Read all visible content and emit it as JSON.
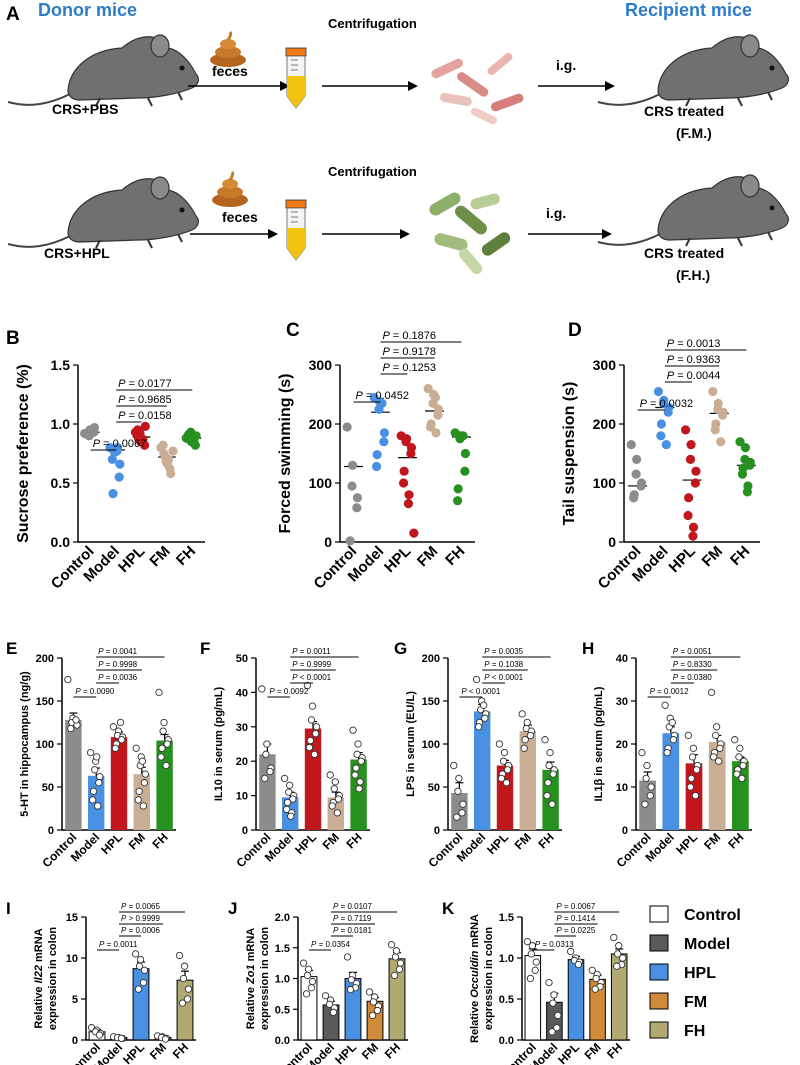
{
  "figure": {
    "colors": {
      "control": "#8c8c8c",
      "model": "#4a90e2",
      "hpl": "#c0161c",
      "fm": "#c9ae95",
      "fh": "#26911f",
      "model_dark": "#5a5a5a",
      "fm_tan": "#d18a3a",
      "fh_olive": "#b0aa72",
      "header_blue": "#2e7bc8"
    }
  },
  "schematic": {
    "panel_label": "A",
    "donor_label": "Donor mice",
    "recipient_label": "Recipient mice",
    "row1": {
      "donor": "CRS+PBS",
      "feces": "feces",
      "step": "Centrifugation",
      "route": "i.g.",
      "recipient": "CRS treated",
      "group": "(F.M.)"
    },
    "row2": {
      "donor": "CRS+HPL",
      "feces": "feces",
      "step": "Centrifugation",
      "route": "i.g.",
      "recipient": "CRS treated",
      "group": "(F.H.)"
    }
  },
  "legend": {
    "items": [
      {
        "label": "Control",
        "color": "#ffffff"
      },
      {
        "label": "Model",
        "color": "#5a5a5a"
      },
      {
        "label": "HPL",
        "color": "#4a90e2"
      },
      {
        "label": "FM",
        "color": "#d18a3a"
      },
      {
        "label": "FH",
        "color": "#b0aa72"
      }
    ]
  },
  "chart_data": [
    {
      "panel": "B",
      "type": "scatter",
      "ylabel": "Sucrose preference (%)",
      "ylim": [
        0,
        1.5
      ],
      "yticks": [
        "0.0",
        "0.5",
        "1.0",
        "1.5"
      ],
      "categories": [
        "Control",
        "Model",
        "HPL",
        "FM",
        "FH"
      ],
      "means": [
        0.93,
        0.78,
        0.89,
        0.72,
        0.88
      ],
      "points": [
        [
          0.92,
          0.95,
          0.9,
          0.97,
          0.93,
          0.91
        ],
        [
          0.8,
          0.78,
          0.76,
          0.66,
          0.55,
          0.41,
          0.7,
          0.8,
          0.77
        ],
        [
          0.93,
          0.85,
          0.92,
          0.98,
          0.82,
          0.88,
          0.95,
          0.87
        ],
        [
          0.8,
          0.68,
          0.72,
          0.58,
          0.62,
          0.75,
          0.82,
          0.7,
          0.66,
          0.77
        ],
        [
          0.88,
          0.85,
          0.93,
          0.9,
          0.82,
          0.87,
          0.91,
          0.86
        ]
      ],
      "pvalues": [
        "P = 0.0067",
        "P = 0.0158",
        "P = 0.9685",
        "P = 0.0177"
      ]
    },
    {
      "panel": "C",
      "type": "scatter",
      "ylabel": "Forced swimming (s)",
      "ylim": [
        0,
        300
      ],
      "yticks": [
        "0",
        "100",
        "200",
        "300"
      ],
      "categories": [
        "Control",
        "Model",
        "HPL",
        "FM",
        "FH"
      ],
      "means": [
        128,
        220,
        143,
        222,
        178
      ],
      "points": [
        [
          195,
          130,
          95,
          75,
          58,
          2
        ],
        [
          245,
          238,
          225,
          185,
          170,
          148,
          128,
          235
        ],
        [
          180,
          175,
          170,
          160,
          150,
          120,
          100,
          80,
          65,
          15
        ],
        [
          260,
          250,
          235,
          225,
          215,
          200,
          195,
          185,
          245
        ],
        [
          185,
          180,
          175,
          150,
          120,
          90,
          70,
          180
        ]
      ],
      "pvalues": [
        "P = 0.0452",
        "P = 0.1253",
        "P = 0.9178",
        "P = 0.1876"
      ]
    },
    {
      "panel": "D",
      "type": "scatter",
      "ylabel": "Tail suspension (s)",
      "ylim": [
        0,
        300
      ],
      "yticks": [
        "0",
        "100",
        "200",
        "300"
      ],
      "categories": [
        "Control",
        "Model",
        "HPL",
        "FM",
        "FH"
      ],
      "means": [
        95,
        228,
        105,
        218,
        130
      ],
      "points": [
        [
          165,
          140,
          115,
          100,
          95,
          80,
          75
        ],
        [
          255,
          240,
          235,
          228,
          220,
          200,
          180,
          165
        ],
        [
          190,
          165,
          140,
          120,
          100,
          75,
          45,
          25,
          10
        ],
        [
          255,
          235,
          225,
          220,
          215,
          200,
          190,
          170
        ],
        [
          170,
          160,
          140,
          135,
          130,
          125,
          115,
          95,
          85
        ]
      ],
      "pvalues": [
        "P = 0.0032",
        "P = 0.0044",
        "P = 0.9363",
        "P = 0.0013"
      ]
    },
    {
      "panel": "E",
      "type": "bar",
      "ylabel": "5-HT in hippocampus (ng/g)",
      "ylim": [
        0,
        200
      ],
      "yticks": [
        "0",
        "50",
        "100",
        "150",
        "200"
      ],
      "categories": [
        "Control",
        "Model",
        "HPL",
        "FM",
        "FH"
      ],
      "values": [
        128,
        63,
        108,
        65,
        104
      ],
      "errors": [
        8,
        9,
        6,
        8,
        7
      ],
      "points": [
        [
          175,
          130,
          125,
          122,
          128,
          118
        ],
        [
          90,
          80,
          70,
          62,
          55,
          45,
          35,
          28,
          85
        ],
        [
          120,
          115,
          110,
          108,
          105,
          100,
          95,
          125
        ],
        [
          95,
          85,
          75,
          65,
          55,
          45,
          35,
          28,
          80
        ],
        [
          160,
          125,
          115,
          105,
          100,
          95,
          85,
          75
        ]
      ],
      "pvalues": [
        "P = 0.0090",
        "P = 0.0036",
        "P = 0.9998",
        "P = 0.0041"
      ]
    },
    {
      "panel": "F",
      "type": "bar",
      "ylabel": "IL10 in serum (pg/mL)",
      "ylim": [
        0,
        50
      ],
      "yticks": [
        "0",
        "10",
        "20",
        "30",
        "40",
        "50"
      ],
      "categories": [
        "Control",
        "Model",
        "HPL",
        "FM",
        "FH"
      ],
      "values": [
        22,
        9.5,
        29.5,
        9.5,
        20.5
      ],
      "errors": [
        3,
        1.5,
        2,
        1.5,
        2
      ],
      "points": [
        [
          41,
          25,
          22,
          18,
          17,
          15
        ],
        [
          15,
          13,
          11,
          10,
          9,
          8,
          6,
          5,
          4
        ],
        [
          42,
          36,
          32,
          30,
          28,
          26,
          24,
          22
        ],
        [
          16,
          14,
          12,
          10,
          9,
          8,
          7,
          5
        ],
        [
          29,
          25,
          22,
          21,
          20,
          18,
          16,
          14,
          12
        ]
      ],
      "pvalues": [
        "P = 0.0092",
        "P < 0.0001",
        "P = 0.9999",
        "P = 0.0011"
      ]
    },
    {
      "panel": "G",
      "type": "bar",
      "ylabel": "LPS in serum (EU/L)",
      "ylim": [
        0,
        200
      ],
      "yticks": [
        "0",
        "50",
        "100",
        "150",
        "200"
      ],
      "categories": [
        "Control",
        "Model",
        "HPL",
        "FM",
        "FH"
      ],
      "values": [
        43,
        138,
        75,
        115,
        70
      ],
      "errors": [
        12,
        8,
        6,
        7,
        9
      ],
      "points": [
        [
          75,
          60,
          45,
          30,
          20,
          15
        ],
        [
          175,
          150,
          140,
          135,
          130,
          125,
          120,
          145
        ],
        [
          100,
          90,
          80,
          75,
          70,
          65,
          60,
          55
        ],
        [
          135,
          125,
          118,
          115,
          110,
          105,
          95
        ],
        [
          105,
          90,
          75,
          70,
          65,
          55,
          40,
          30
        ]
      ],
      "pvalues": [
        "P < 0.0001",
        "P < 0.0001",
        "P = 0.1038",
        "P = 0.0035"
      ]
    },
    {
      "panel": "H",
      "type": "bar",
      "ylabel": "IL1β in serum (pg/mL)",
      "ylim": [
        0,
        40
      ],
      "yticks": [
        "0",
        "10",
        "20",
        "30",
        "40"
      ],
      "categories": [
        "Control",
        "Model",
        "HPL",
        "FM",
        "FH"
      ],
      "values": [
        11.5,
        22.5,
        15.5,
        20.5,
        16
      ],
      "errors": [
        2,
        1.5,
        2,
        1.5,
        1
      ],
      "points": [
        [
          18,
          15,
          12,
          10,
          8,
          6
        ],
        [
          29,
          26,
          24,
          22,
          21,
          19,
          18,
          25
        ],
        [
          22,
          19,
          17,
          15,
          14,
          12,
          10,
          8
        ],
        [
          32,
          24,
          22,
          20,
          19,
          18,
          17,
          16
        ],
        [
          21,
          19,
          17,
          16,
          15,
          14,
          13,
          12
        ]
      ],
      "pvalues": [
        "P = 0.0012",
        "P = 0.0380",
        "P = 0.8330",
        "P = 0.0051"
      ]
    },
    {
      "panel": "I",
      "type": "bar",
      "ylabel_prefix": "Relative ",
      "ylabel_gene": "Il22",
      "ylabel_suffix": " mRNA",
      "ylabel2": "expression in colon",
      "ylim": [
        0,
        15
      ],
      "yticks": [
        "0",
        "5",
        "10",
        "15"
      ],
      "categories": [
        "Control",
        "Model",
        "HPL",
        "FM",
        "FH"
      ],
      "values": [
        1.0,
        0.3,
        8.7,
        0.3,
        7.3
      ],
      "errors": [
        0.3,
        0.1,
        0.8,
        0.1,
        1.1
      ],
      "points": [
        [
          1.5,
          1.2,
          1.0,
          0.8,
          0.6
        ],
        [
          0.4,
          0.3,
          0.3,
          0.2,
          0.2
        ],
        [
          10.5,
          9.8,
          9.0,
          8.5,
          7.0,
          6.2
        ],
        [
          0.5,
          0.4,
          0.3,
          0.2,
          0.1
        ],
        [
          10.3,
          9.0,
          7.5,
          6.2,
          5.0,
          4.5
        ]
      ],
      "pvalues": [
        "P = 0.0011",
        "P = 0.0006",
        "P > 0.9999",
        "P = 0.0065"
      ]
    },
    {
      "panel": "J",
      "type": "bar",
      "ylabel_prefix": "Relative ",
      "ylabel_gene": "Zo1",
      "ylabel_suffix": " mRNA",
      "ylabel2": "expression in colon",
      "ylim": [
        0,
        2.0
      ],
      "yticks": [
        "0.0",
        "0.5",
        "1.0",
        "1.5",
        "2.0"
      ],
      "categories": [
        "Control",
        "Model",
        "HPL",
        "FM",
        "FH"
      ],
      "values": [
        1.03,
        0.57,
        1.0,
        0.63,
        1.32
      ],
      "errors": [
        0.1,
        0.06,
        0.1,
        0.06,
        0.1
      ],
      "points": [
        [
          1.25,
          1.15,
          1.05,
          0.95,
          0.85,
          0.75
        ],
        [
          0.72,
          0.65,
          0.58,
          0.52,
          0.45
        ],
        [
          1.35,
          1.05,
          0.98,
          0.92,
          0.85,
          0.82
        ],
        [
          0.78,
          0.7,
          0.62,
          0.55,
          0.48,
          0.4
        ],
        [
          1.55,
          1.45,
          1.35,
          1.25,
          1.15,
          1.05
        ]
      ],
      "pvalues": [
        "P = 0.0354",
        "P = 0.0181",
        "P = 0.7119",
        "P = 0.0107"
      ]
    },
    {
      "panel": "K",
      "type": "bar",
      "ylabel_prefix": "Relative ",
      "ylabel_gene": "Occuldin",
      "ylabel_suffix": " mRNA",
      "ylabel2": "expression in colon",
      "ylim": [
        0,
        1.5
      ],
      "yticks": [
        "0.0",
        "0.5",
        "1.0",
        "1.5"
      ],
      "categories": [
        "Control",
        "Model",
        "HPL",
        "FM",
        "FH"
      ],
      "values": [
        1.03,
        0.46,
        0.98,
        0.74,
        1.05
      ],
      "errors": [
        0.08,
        0.11,
        0.04,
        0.05,
        0.06
      ],
      "points": [
        [
          1.2,
          1.15,
          1.05,
          0.95,
          0.85,
          0.75
        ],
        [
          0.7,
          0.55,
          0.45,
          0.3,
          0.15,
          0.1
        ],
        [
          1.08,
          1.0,
          0.97,
          0.95,
          0.92
        ],
        [
          0.85,
          0.8,
          0.75,
          0.7,
          0.65,
          0.62
        ],
        [
          1.25,
          1.15,
          1.05,
          1.0,
          0.92,
          0.9
        ]
      ],
      "pvalues": [
        "P = 0.0313",
        "P = 0.0225",
        "P = 0.1414",
        "P = 0.0067"
      ]
    }
  ]
}
